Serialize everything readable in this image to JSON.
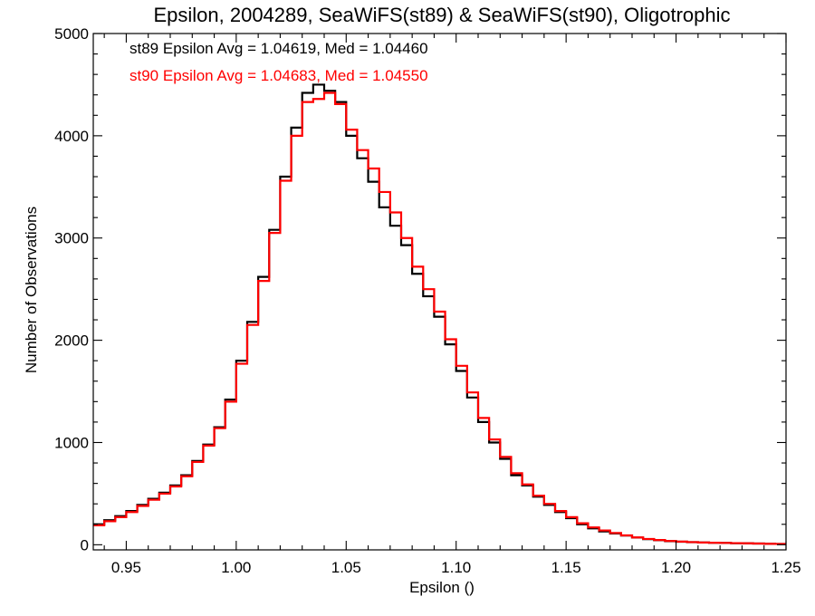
{
  "chart_data": {
    "type": "line",
    "title": "Epsilon, 2004289, SeaWiFS(st89) & SeaWiFS(st90), Oligotrophic",
    "xlabel": "Epsilon ()",
    "ylabel": "Number of Observations",
    "xlim": [
      0.935,
      1.25
    ],
    "ylim": [
      -50,
      5000
    ],
    "x_ticks": [
      0.95,
      1.0,
      1.05,
      1.1,
      1.15,
      1.2,
      1.25
    ],
    "x_tick_labels": [
      "0.95",
      "1.00",
      "1.05",
      "1.10",
      "1.15",
      "1.20",
      "1.25"
    ],
    "y_ticks": [
      0,
      1000,
      2000,
      3000,
      4000,
      5000
    ],
    "y_tick_labels": [
      "0",
      "1000",
      "2000",
      "3000",
      "4000",
      "5000"
    ],
    "grid": false,
    "legend_position": "top-left",
    "step": 0.005,
    "series": [
      {
        "name": "st89",
        "color": "#000000",
        "legend": "st89 Epsilon Avg = 1.04619, Med = 1.04460",
        "x": [
          0.935,
          0.94,
          0.945,
          0.95,
          0.955,
          0.96,
          0.965,
          0.97,
          0.975,
          0.98,
          0.985,
          0.99,
          0.995,
          1.0,
          1.005,
          1.01,
          1.015,
          1.02,
          1.025,
          1.03,
          1.035,
          1.04,
          1.045,
          1.05,
          1.055,
          1.06,
          1.065,
          1.07,
          1.075,
          1.08,
          1.085,
          1.09,
          1.095,
          1.1,
          1.105,
          1.11,
          1.115,
          1.12,
          1.125,
          1.13,
          1.135,
          1.14,
          1.145,
          1.15,
          1.155,
          1.16,
          1.165,
          1.17,
          1.175,
          1.18,
          1.185,
          1.19,
          1.195,
          1.2,
          1.205,
          1.21,
          1.215,
          1.22,
          1.225,
          1.23,
          1.235,
          1.24,
          1.245
        ],
        "values": [
          200,
          240,
          280,
          330,
          390,
          450,
          510,
          580,
          680,
          820,
          980,
          1150,
          1420,
          1800,
          2180,
          2620,
          3080,
          3600,
          4080,
          4420,
          4500,
          4440,
          4330,
          4000,
          3780,
          3550,
          3300,
          3120,
          2930,
          2650,
          2430,
          2230,
          1960,
          1700,
          1440,
          1200,
          1000,
          840,
          680,
          580,
          470,
          390,
          320,
          260,
          200,
          160,
          130,
          110,
          90,
          70,
          55,
          45,
          35,
          30,
          25,
          22,
          20,
          18,
          15,
          14,
          12,
          10,
          8
        ]
      },
      {
        "name": "st90",
        "color": "#ff0000",
        "legend": "st90 Epsilon Avg = 1.04683, Med = 1.04550",
        "x": [
          0.935,
          0.94,
          0.945,
          0.95,
          0.955,
          0.96,
          0.965,
          0.97,
          0.975,
          0.98,
          0.985,
          0.99,
          0.995,
          1.0,
          1.005,
          1.01,
          1.015,
          1.02,
          1.025,
          1.03,
          1.035,
          1.04,
          1.045,
          1.05,
          1.055,
          1.06,
          1.065,
          1.07,
          1.075,
          1.08,
          1.085,
          1.09,
          1.095,
          1.1,
          1.105,
          1.11,
          1.115,
          1.12,
          1.125,
          1.13,
          1.135,
          1.14,
          1.145,
          1.15,
          1.155,
          1.16,
          1.165,
          1.17,
          1.175,
          1.18,
          1.185,
          1.19,
          1.195,
          1.2,
          1.205,
          1.21,
          1.215,
          1.22,
          1.225,
          1.23,
          1.235,
          1.24,
          1.245
        ],
        "values": [
          190,
          230,
          270,
          320,
          380,
          440,
          500,
          570,
          670,
          810,
          970,
          1140,
          1400,
          1770,
          2150,
          2580,
          3050,
          3560,
          4000,
          4330,
          4360,
          4420,
          4310,
          4060,
          3860,
          3680,
          3450,
          3250,
          3000,
          2720,
          2500,
          2280,
          2010,
          1750,
          1490,
          1240,
          1030,
          860,
          700,
          590,
          480,
          400,
          330,
          270,
          210,
          170,
          140,
          115,
          92,
          72,
          57,
          46,
          37,
          31,
          26,
          22,
          20,
          18,
          16,
          14,
          12,
          10,
          8
        ]
      }
    ]
  }
}
